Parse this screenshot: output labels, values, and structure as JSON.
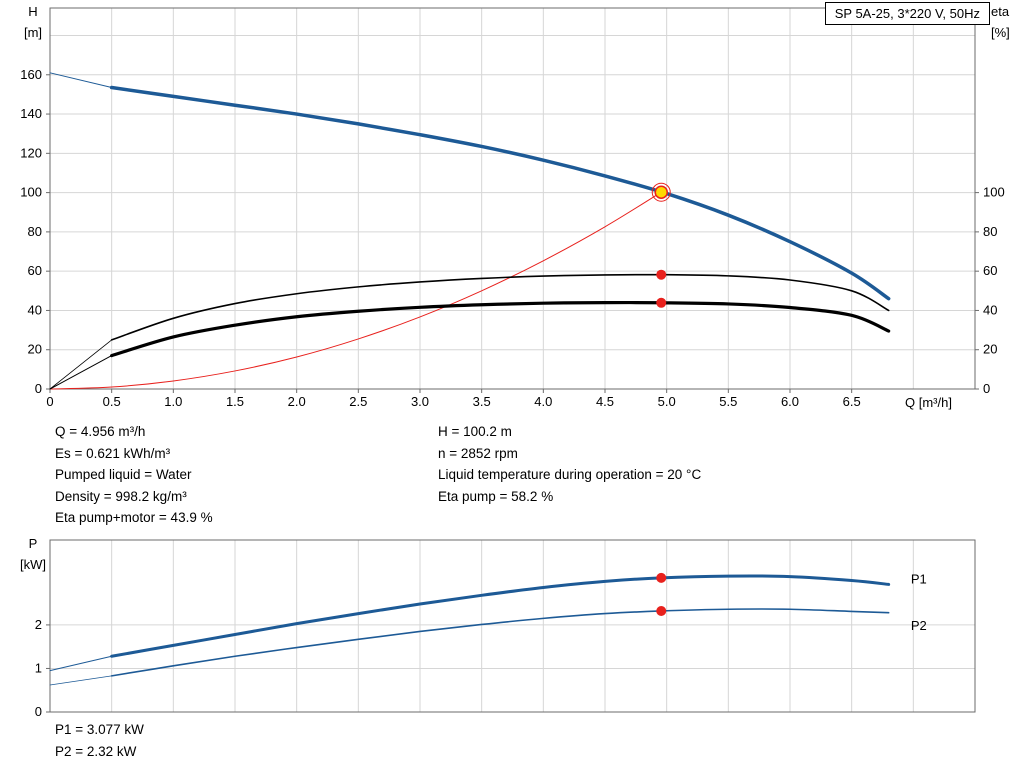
{
  "title_box": "SP 5A-25, 3*220 V, 50Hz",
  "colors": {
    "curve_blue": "#1d5a96",
    "marker_red": "#e8211d",
    "duty_yellow": "#ffd800",
    "grid": "#d6d6d6",
    "frame": "#6b6b6b",
    "text": "#000000"
  },
  "details": {
    "left": [
      "Q = 4.956 m³/h",
      "Es = 0.621 kWh/m³",
      "Pumped liquid = Water",
      "Density = 998.2 kg/m³",
      "Eta pump+motor = 43.9 %"
    ],
    "right": [
      "H = 100.2 m",
      "n = 2852 rpm",
      "Liquid temperature during operation = 20 °C",
      "Eta pump = 58.2 %"
    ]
  },
  "power_labels": [
    "P1 = 3.077 kW",
    "P2 = 2.32 kW"
  ],
  "chart_data": [
    {
      "id": "head-chart",
      "type": "line",
      "title": "SP 5A-25, 3*220 V, 50Hz",
      "xlabel": "Q [m³/h]",
      "ylabel_left": [
        "H",
        "[m]"
      ],
      "ylabel_right": [
        "eta",
        "[%]"
      ],
      "xlim": [
        0,
        7.5
      ],
      "ylim": [
        0,
        194
      ],
      "grid": true,
      "x_ticks": [
        0,
        0.5,
        1,
        1.5,
        2,
        2.5,
        3,
        3.5,
        4,
        4.5,
        5,
        5.5,
        6,
        6.5
      ],
      "x_tick_labels": [
        "0",
        "0.5",
        "1.0",
        "1.5",
        "2.0",
        "2.5",
        "3.0",
        "3.5",
        "4.0",
        "4.5",
        "5.0",
        "5.5",
        "6.0",
        "6.5"
      ],
      "y_ticks_left": [
        0,
        20,
        40,
        60,
        80,
        100,
        120,
        140,
        160
      ],
      "y_tick_labels_left": [
        "0",
        "20",
        "40",
        "60",
        "80",
        "100",
        "120",
        "140",
        "160"
      ],
      "y_ticks_right": [
        0,
        20,
        40,
        60,
        80,
        100
      ],
      "y_tick_labels_right": [
        "0",
        "20",
        "40",
        "60",
        "80",
        "100"
      ],
      "x_grid": [
        0.5,
        1,
        1.5,
        2,
        2.5,
        3,
        3.5,
        4,
        4.5,
        5,
        5.5,
        6,
        6.5,
        7
      ],
      "y_grid": [
        20,
        40,
        60,
        80,
        100,
        120,
        140,
        160,
        180
      ],
      "series": [
        {
          "name": "pump-curve-extension",
          "color": "#1d5a96",
          "width": 1,
          "points": [
            [
              0,
              161
            ],
            [
              0.5,
              153.5
            ]
          ]
        },
        {
          "name": "pump-curve",
          "color": "#1d5a96",
          "width": 3.5,
          "points": [
            [
              0.5,
              153.5
            ],
            [
              1,
              149
            ],
            [
              1.5,
              144.5
            ],
            [
              2,
              140
            ],
            [
              2.5,
              135
            ],
            [
              3,
              129.5
            ],
            [
              3.5,
              123.5
            ],
            [
              4,
              116.5
            ],
            [
              4.5,
              108.5
            ],
            [
              5,
              99.5
            ],
            [
              5.5,
              88.5
            ],
            [
              6,
              75
            ],
            [
              6.5,
              59
            ],
            [
              6.8,
              46
            ]
          ]
        },
        {
          "name": "system-curve",
          "color": "#e8211d",
          "width": 1,
          "points": [
            [
              0,
              0
            ],
            [
              0.5,
              1
            ],
            [
              1,
              4.1
            ],
            [
              1.5,
              9.2
            ],
            [
              2,
              16.3
            ],
            [
              2.5,
              25.5
            ],
            [
              3,
              36.7
            ],
            [
              3.5,
              50
            ],
            [
              4,
              65.3
            ],
            [
              4.5,
              82.6
            ],
            [
              4.956,
              100.2
            ]
          ]
        },
        {
          "name": "eta-pump-curve-extension",
          "color": "#000000",
          "width": 0.8,
          "points": [
            [
              0,
              0
            ],
            [
              0.5,
              25
            ]
          ]
        },
        {
          "name": "eta-pump-curve",
          "color": "#000000",
          "width": 1.6,
          "points": [
            [
              0.5,
              25
            ],
            [
              1,
              36
            ],
            [
              1.5,
              43.5
            ],
            [
              2,
              48.5
            ],
            [
              2.5,
              52
            ],
            [
              3,
              54.5
            ],
            [
              3.5,
              56.3
            ],
            [
              4,
              57.5
            ],
            [
              4.5,
              58.1
            ],
            [
              4.956,
              58.2
            ],
            [
              5.5,
              57.6
            ],
            [
              6,
              55.5
            ],
            [
              6.5,
              50
            ],
            [
              6.8,
              40
            ]
          ]
        },
        {
          "name": "eta-pump-motor-curve-extension",
          "color": "#000000",
          "width": 1,
          "points": [
            [
              0,
              0
            ],
            [
              0.5,
              17
            ]
          ]
        },
        {
          "name": "eta-pump-motor-curve",
          "color": "#000000",
          "width": 3.2,
          "points": [
            [
              0.5,
              17
            ],
            [
              1,
              26.5
            ],
            [
              1.5,
              32.5
            ],
            [
              2,
              36.8
            ],
            [
              2.5,
              39.6
            ],
            [
              3,
              41.6
            ],
            [
              3.5,
              42.9
            ],
            [
              4,
              43.7
            ],
            [
              4.5,
              44
            ],
            [
              4.956,
              43.9
            ],
            [
              5.5,
              43.3
            ],
            [
              6,
              41.5
            ],
            [
              6.5,
              37.5
            ],
            [
              6.8,
              29.5
            ]
          ]
        }
      ],
      "markers": [
        {
          "name": "duty-point-ring",
          "x": 4.956,
          "y": 100.2,
          "r": 9,
          "fill": "none",
          "stroke": "#e8211d",
          "stroke_width": 1
        },
        {
          "name": "duty-point",
          "x": 4.956,
          "y": 100.2,
          "r": 6,
          "fill": "#ffd800",
          "stroke": "#e8211d",
          "stroke_width": 1.5
        },
        {
          "name": "eta-pump-duty-point",
          "x": 4.956,
          "y": 58.2,
          "r": 5,
          "fill": "#e8211d",
          "stroke": "none",
          "stroke_width": 0
        },
        {
          "name": "eta-pump-motor-duty-point",
          "x": 4.956,
          "y": 43.9,
          "r": 5,
          "fill": "#e8211d",
          "stroke": "none",
          "stroke_width": 0
        }
      ],
      "annotations": []
    },
    {
      "id": "power-chart",
      "type": "line",
      "title": "",
      "xlabel": "",
      "ylabel_left": [
        "P",
        "[kW]"
      ],
      "xlim": [
        0,
        7.5
      ],
      "ylim": [
        0,
        3.95
      ],
      "grid": true,
      "x_ticks": [],
      "x_tick_labels": [],
      "y_ticks_left": [
        0,
        1,
        2
      ],
      "y_tick_labels_left": [
        "0",
        "1",
        "2"
      ],
      "x_grid": [
        0.5,
        1,
        1.5,
        2,
        2.5,
        3,
        3.5,
        4,
        4.5,
        5,
        5.5,
        6,
        6.5,
        7
      ],
      "y_grid": [
        1,
        2
      ],
      "series": [
        {
          "name": "p1-curve-extension",
          "color": "#1d5a96",
          "width": 1,
          "points": [
            [
              0,
              0.95
            ],
            [
              0.5,
              1.28
            ]
          ]
        },
        {
          "name": "p1-curve",
          "color": "#1d5a96",
          "width": 3,
          "points": [
            [
              0.5,
              1.28
            ],
            [
              1,
              1.53
            ],
            [
              1.5,
              1.78
            ],
            [
              2,
              2.03
            ],
            [
              2.5,
              2.26
            ],
            [
              3,
              2.48
            ],
            [
              3.5,
              2.68
            ],
            [
              4,
              2.86
            ],
            [
              4.5,
              3.0
            ],
            [
              4.956,
              3.08
            ],
            [
              5.5,
              3.12
            ],
            [
              6,
              3.11
            ],
            [
              6.5,
              3.02
            ],
            [
              6.8,
              2.93
            ]
          ]
        },
        {
          "name": "p2-curve-extension",
          "color": "#1d5a96",
          "width": 0.8,
          "points": [
            [
              0,
              0.62
            ],
            [
              0.5,
              0.83
            ]
          ]
        },
        {
          "name": "p2-curve",
          "color": "#1d5a96",
          "width": 1.6,
          "points": [
            [
              0.5,
              0.83
            ],
            [
              1,
              1.06
            ],
            [
              1.5,
              1.28
            ],
            [
              2,
              1.48
            ],
            [
              2.5,
              1.67
            ],
            [
              3,
              1.85
            ],
            [
              3.5,
              2.01
            ],
            [
              4,
              2.15
            ],
            [
              4.5,
              2.26
            ],
            [
              4.956,
              2.32
            ],
            [
              5.5,
              2.36
            ],
            [
              6,
              2.36
            ],
            [
              6.5,
              2.31
            ],
            [
              6.8,
              2.28
            ]
          ]
        }
      ],
      "markers": [
        {
          "name": "p1-duty-point",
          "x": 4.956,
          "y": 3.08,
          "r": 5,
          "fill": "#e8211d",
          "stroke": "none",
          "stroke_width": 0
        },
        {
          "name": "p2-duty-point",
          "x": 4.956,
          "y": 2.32,
          "r": 5,
          "fill": "#e8211d",
          "stroke": "none",
          "stroke_width": 0
        }
      ],
      "annotations": [
        {
          "name": "p1-label",
          "text": "P1",
          "x": 6.98,
          "y": 2.95,
          "color": "#1d5a96"
        },
        {
          "name": "p2-label",
          "text": "P2",
          "x": 6.98,
          "y": 1.88,
          "color": "#1d5a96"
        }
      ]
    }
  ]
}
